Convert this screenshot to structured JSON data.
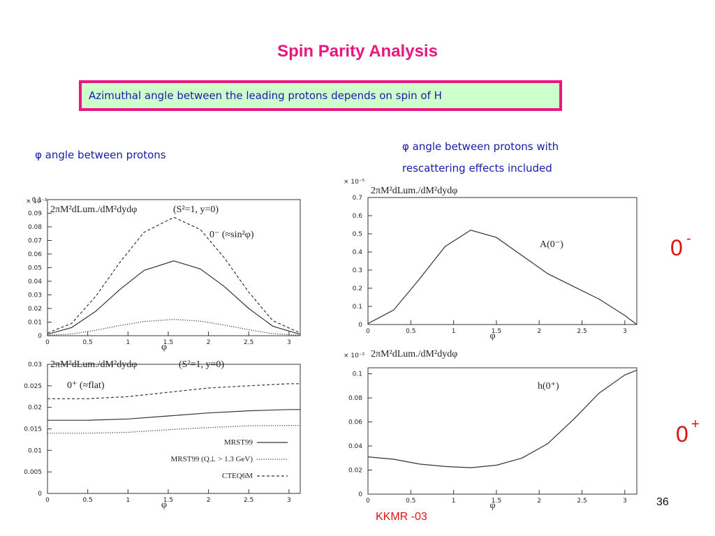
{
  "title": "Spin Parity Analysis",
  "box_text": "Azimuthal angle between the leading protons depends on spin of H",
  "caption_left": "φ angle between protons",
  "caption_right": [
    "φ angle between protons with",
    "rescattering effects included"
  ],
  "parity_labels": [
    {
      "base": "0",
      "sup": "-"
    },
    {
      "base": "0",
      "sup": "+"
    }
  ],
  "page_number": "36",
  "reference": "KKMR -03",
  "chart_data": [
    {
      "type": "line",
      "title": "2πM²dLum./dM²dydφ",
      "multiplier": "× 10⁻³",
      "annotations": [
        "(S²=1,   y=0)",
        "0⁻ (≈sin²φ)"
      ],
      "x_label": "φ",
      "xlim": [
        0,
        3.14
      ],
      "xticks": [
        0,
        0.5,
        1,
        1.5,
        2,
        2.5,
        3
      ],
      "ylim": [
        0,
        0.1
      ],
      "yticks": [
        0,
        0.01,
        0.02,
        0.03,
        0.04,
        0.05,
        0.06,
        0.07,
        0.08,
        0.09,
        0.1
      ],
      "x": [
        0,
        0.3,
        0.6,
        0.9,
        1.2,
        1.57,
        1.9,
        2.2,
        2.5,
        2.8,
        3.14
      ],
      "series": [
        {
          "color": "#333333",
          "dash": "dashed",
          "values": [
            0.002,
            0.009,
            0.029,
            0.054,
            0.076,
            0.087,
            0.078,
            0.057,
            0.032,
            0.011,
            0.002
          ]
        },
        {
          "color": "#333333",
          "dash": "solid",
          "values": [
            0.001,
            0.006,
            0.018,
            0.034,
            0.048,
            0.055,
            0.049,
            0.036,
            0.02,
            0.007,
            0.001
          ]
        },
        {
          "color": "#333333",
          "dash": "dotted",
          "values": [
            0.0003,
            0.0013,
            0.004,
            0.0075,
            0.0104,
            0.012,
            0.0107,
            0.0078,
            0.0044,
            0.0015,
            0.0003
          ]
        }
      ]
    },
    {
      "type": "line",
      "title": "2πM²dLum./dM²dydφ",
      "multiplier": "× 10⁻⁵",
      "annotations": [
        "A(0⁻)"
      ],
      "x_label": "φ",
      "xlim": [
        0,
        3.14
      ],
      "xticks": [
        0,
        0.5,
        1,
        1.5,
        2,
        2.5,
        3
      ],
      "ylim": [
        0,
        0.7
      ],
      "yticks": [
        0,
        0.1,
        0.2,
        0.3,
        0.4,
        0.5,
        0.6,
        0.7
      ],
      "x": [
        0,
        0.3,
        0.6,
        0.9,
        1.2,
        1.5,
        1.8,
        2.1,
        2.4,
        2.7,
        3.0,
        3.14
      ],
      "series": [
        {
          "color": "#333333",
          "dash": "solid",
          "values": [
            0.005,
            0.08,
            0.25,
            0.43,
            0.52,
            0.48,
            0.38,
            0.28,
            0.21,
            0.14,
            0.05,
            0
          ]
        }
      ]
    },
    {
      "type": "line",
      "title": "2πM²dLum./dM²dydφ",
      "annotations": [
        "(S²=1,   y=0)",
        "0⁺  (≈flat)"
      ],
      "x_label": "φ",
      "xlim": [
        0,
        3.14
      ],
      "xticks": [
        0,
        0.5,
        1,
        1.5,
        2,
        2.5,
        3
      ],
      "ylim": [
        0,
        0.03
      ],
      "yticks": [
        0,
        0.005,
        0.01,
        0.015,
        0.02,
        0.025,
        0.03
      ],
      "x": [
        0,
        0.5,
        1,
        1.5,
        2,
        2.5,
        3,
        3.14
      ],
      "series": [
        {
          "name": "MRST99",
          "color": "#333333",
          "dash": "solid",
          "values": [
            0.017,
            0.017,
            0.0173,
            0.018,
            0.0187,
            0.0192,
            0.0195,
            0.0195
          ]
        },
        {
          "name": "MRST99 (Q⊥ > 1.3 GeV)",
          "color": "#333333",
          "dash": "dotted",
          "values": [
            0.014,
            0.014,
            0.0142,
            0.0148,
            0.0153,
            0.0157,
            0.0158,
            0.0158
          ]
        },
        {
          "name": "CTEQ6M",
          "color": "#333333",
          "dash": "dashed",
          "values": [
            0.022,
            0.022,
            0.0225,
            0.0235,
            0.0245,
            0.025,
            0.0255,
            0.0255
          ]
        }
      ]
    },
    {
      "type": "line",
      "title": "2πM²dLum./dM²dydφ",
      "multiplier": "× 10⁻²",
      "annotations": [
        "h(0⁺)"
      ],
      "x_label": "φ",
      "xlim": [
        0,
        3.14
      ],
      "xticks": [
        0,
        0.5,
        1,
        1.5,
        2,
        2.5,
        3
      ],
      "ylim": [
        0,
        0.105
      ],
      "yticks": [
        0,
        0.02,
        0.04,
        0.06,
        0.08,
        0.1
      ],
      "x": [
        0,
        0.3,
        0.6,
        0.9,
        1.2,
        1.5,
        1.8,
        2.1,
        2.4,
        2.7,
        3.0,
        3.14
      ],
      "series": [
        {
          "color": "#333333",
          "dash": "solid",
          "values": [
            0.031,
            0.029,
            0.025,
            0.023,
            0.022,
            0.024,
            0.03,
            0.042,
            0.062,
            0.084,
            0.099,
            0.103
          ]
        }
      ]
    }
  ]
}
